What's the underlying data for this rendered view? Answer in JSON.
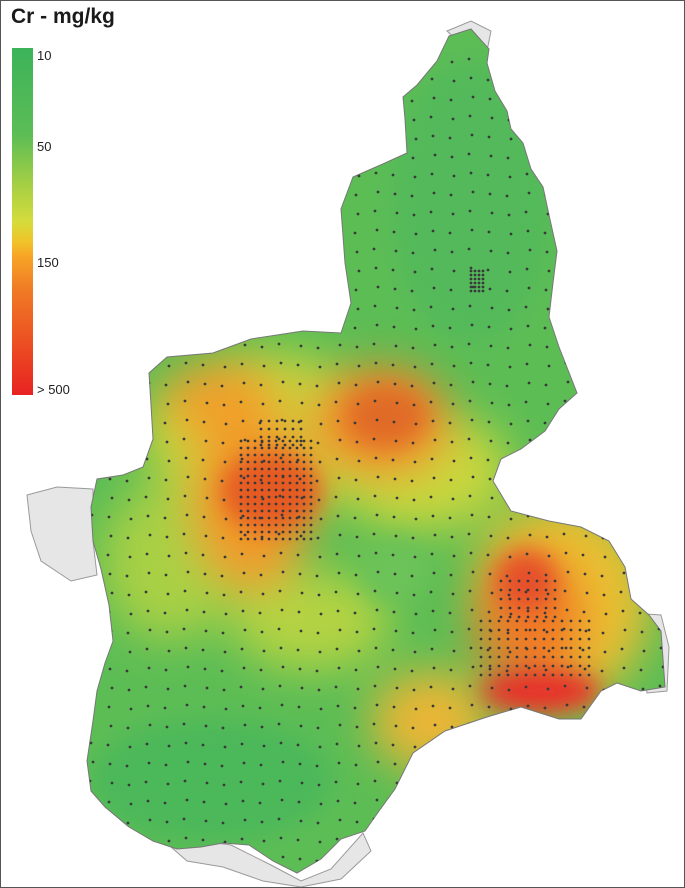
{
  "map": {
    "title": "Cr - mg/kg",
    "legend": {
      "labels": [
        "10",
        "50",
        "150",
        "> 500"
      ],
      "colors": {
        "low": "#3cb35a",
        "mid_low": "#a8d044",
        "mid": "#f1c329",
        "mid_high": "#f07a25",
        "high": "#e82222",
        "outside_region": "#e6e6e6"
      }
    },
    "icons": [
      "sample-point-icon"
    ]
  }
}
